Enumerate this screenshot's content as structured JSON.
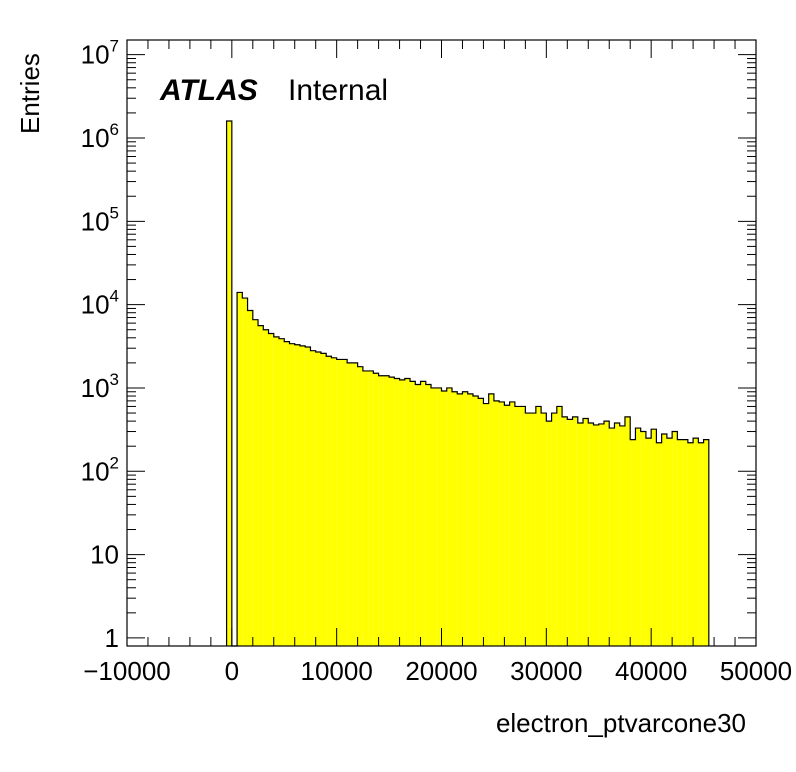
{
  "chart_data": {
    "type": "bar",
    "histogram": true,
    "xlabel": "electron_ptvarcone30",
    "ylabel": "Entries",
    "xlim": [
      -10000,
      50000
    ],
    "ylim": [
      0.8,
      15000000
    ],
    "yscale": "log",
    "grid": false,
    "legend": "none",
    "label": {
      "atlas": "ATLAS",
      "status": "Internal"
    },
    "fill_color": "#ffff00",
    "line_color": "#000000",
    "x_ticks": [
      "−10000",
      "0",
      "10000",
      "20000",
      "30000",
      "40000",
      "50000"
    ],
    "y_ticks": [
      {
        "base": "1",
        "exp": ""
      },
      {
        "base": "10",
        "exp": ""
      },
      {
        "base": "10",
        "exp": "2"
      },
      {
        "base": "10",
        "exp": "3"
      },
      {
        "base": "10",
        "exp": "4"
      },
      {
        "base": "10",
        "exp": "5"
      },
      {
        "base": "10",
        "exp": "6"
      },
      {
        "base": "10",
        "exp": "7"
      }
    ],
    "bin_width": 500,
    "bin_start": -500,
    "values": [
      1600000,
      0,
      14000,
      12000,
      8500,
      6600,
      5600,
      5000,
      4500,
      4100,
      3900,
      3600,
      3400,
      3300,
      3200,
      3100,
      2800,
      2700,
      2600,
      2400,
      2300,
      2200,
      2200,
      2000,
      2000,
      1800,
      1600,
      1600,
      1500,
      1400,
      1400,
      1350,
      1300,
      1250,
      1300,
      1200,
      1100,
      1200,
      1100,
      1000,
      1000,
      920,
      1000,
      900,
      850,
      900,
      850,
      800,
      750,
      650,
      850,
      700,
      680,
      620,
      680,
      600,
      600,
      500,
      500,
      600,
      500,
      400,
      500,
      600,
      450,
      420,
      450,
      380,
      430,
      380,
      360,
      370,
      400,
      330,
      380,
      350,
      450,
      240,
      330,
      300,
      250,
      320,
      220,
      280,
      250,
      300,
      240,
      240,
      220,
      250,
      220,
      240
    ]
  }
}
